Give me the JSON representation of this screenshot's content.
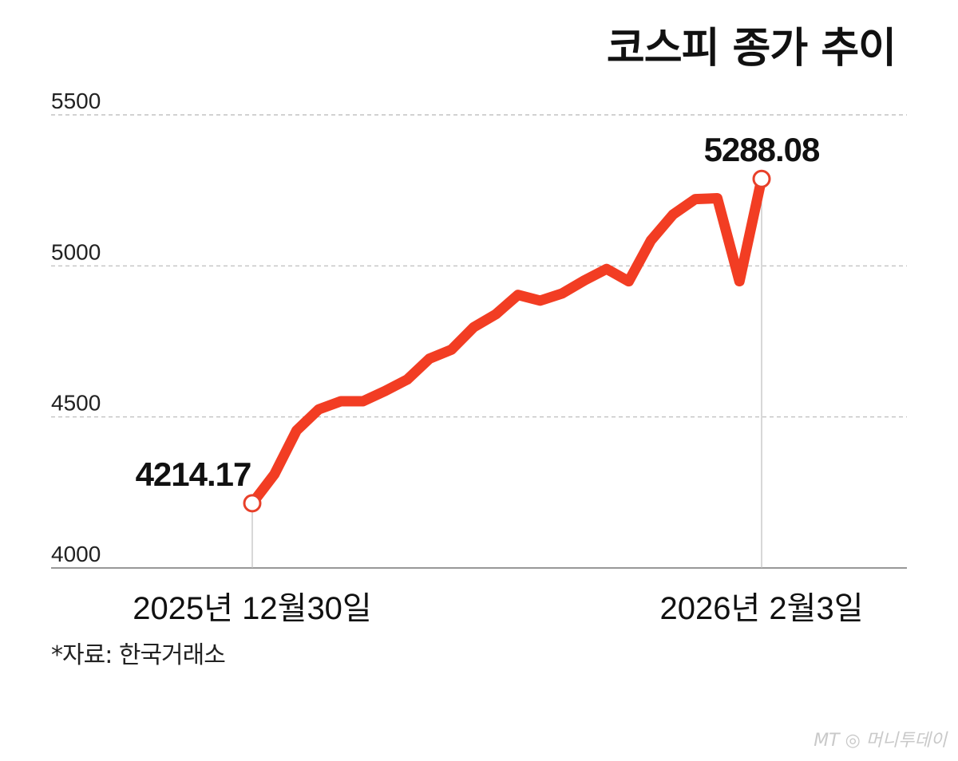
{
  "chart_data": {
    "type": "line",
    "title": "코스피 종가 추이",
    "xlabel": "",
    "ylabel": "",
    "ylim": [
      4000,
      5500
    ],
    "y_ticks": [
      "4000",
      "4500",
      "5000",
      "5500"
    ],
    "x_tick_labels": {
      "start": "2025년 12월30일",
      "end": "2026년 2월3일"
    },
    "grid": "horizontal-dashed",
    "series": [
      {
        "values": [
          4214.17,
          4310,
          4455,
          4525,
          4552,
          4552,
          4586,
          4624,
          4693,
          4723,
          4797,
          4840,
          4904,
          4885,
          4909,
          4952,
          4990,
          4949,
          5084,
          5170,
          5221,
          5224,
          4949,
          5288.08
        ]
      }
    ],
    "annotations": [
      {
        "point": "first",
        "label": "4214.17"
      },
      {
        "point": "last",
        "label": "5288.08"
      }
    ],
    "colors": {
      "line": "#f23d23",
      "marker_stroke": "#e8402a",
      "grid": "#b8b8b8",
      "axis": "#777777"
    }
  },
  "footer": {
    "source": "*자료: 한국거래소",
    "logo": "MT 머니투데이"
  }
}
